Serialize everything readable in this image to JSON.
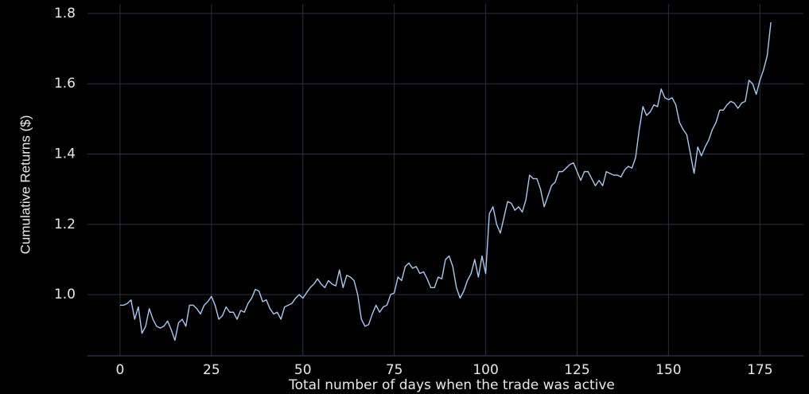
{
  "chart_data": {
    "type": "line",
    "x_label": "Total number of days when the trade was active",
    "y_label": "Cumulative Returns ($)",
    "x": [
      0,
      1,
      2,
      3,
      4,
      5,
      6,
      7,
      8,
      9,
      10,
      11,
      12,
      13,
      14,
      15,
      16,
      17,
      18,
      19,
      20,
      21,
      22,
      23,
      24,
      25,
      26,
      27,
      28,
      29,
      30,
      31,
      32,
      33,
      34,
      35,
      36,
      37,
      38,
      39,
      40,
      41,
      42,
      43,
      44,
      45,
      46,
      47,
      48,
      49,
      50,
      51,
      52,
      53,
      54,
      55,
      56,
      57,
      58,
      59,
      60,
      61,
      62,
      63,
      64,
      65,
      66,
      67,
      68,
      69,
      70,
      71,
      72,
      73,
      74,
      75,
      76,
      77,
      78,
      79,
      80,
      81,
      82,
      83,
      84,
      85,
      86,
      87,
      88,
      89,
      90,
      91,
      92,
      93,
      94,
      95,
      96,
      97,
      98,
      99,
      100,
      101,
      102,
      103,
      104,
      105,
      106,
      107,
      108,
      109,
      110,
      111,
      112,
      113,
      114,
      115,
      116,
      117,
      118,
      119,
      120,
      121,
      122,
      123,
      124,
      125,
      126,
      127,
      128,
      129,
      130,
      131,
      132,
      133,
      134,
      135,
      136,
      137,
      138,
      139,
      140,
      141,
      142,
      143,
      144,
      145,
      146,
      147,
      148,
      149,
      150,
      151,
      152,
      153,
      154,
      155,
      156,
      157,
      158,
      159,
      160,
      161,
      162,
      163,
      164,
      165,
      166,
      167,
      168,
      169,
      170,
      171,
      172,
      173,
      174,
      175,
      176,
      177,
      178
    ],
    "series": [
      {
        "name": "Cumulative Returns",
        "color": "#a9c9f0",
        "values": [
          0.97,
          0.97,
          0.975,
          0.985,
          0.93,
          0.965,
          0.89,
          0.91,
          0.96,
          0.93,
          0.91,
          0.905,
          0.91,
          0.925,
          0.9,
          0.87,
          0.92,
          0.93,
          0.91,
          0.97,
          0.97,
          0.96,
          0.945,
          0.97,
          0.98,
          0.995,
          0.97,
          0.93,
          0.94,
          0.965,
          0.95,
          0.95,
          0.93,
          0.955,
          0.95,
          0.975,
          0.99,
          1.015,
          1.01,
          0.98,
          0.985,
          0.96,
          0.945,
          0.95,
          0.93,
          0.965,
          0.97,
          0.975,
          0.99,
          1.0,
          0.99,
          1.005,
          1.02,
          1.03,
          1.045,
          1.03,
          1.02,
          1.04,
          1.03,
          1.025,
          1.07,
          1.02,
          1.055,
          1.05,
          1.04,
          1.0,
          0.93,
          0.91,
          0.915,
          0.945,
          0.97,
          0.95,
          0.965,
          0.97,
          1.0,
          1.005,
          1.05,
          1.04,
          1.08,
          1.09,
          1.075,
          1.08,
          1.06,
          1.065,
          1.045,
          1.02,
          1.02,
          1.05,
          1.045,
          1.1,
          1.11,
          1.08,
          1.02,
          0.99,
          1.01,
          1.04,
          1.06,
          1.1,
          1.05,
          1.11,
          1.06,
          1.23,
          1.25,
          1.2,
          1.175,
          1.22,
          1.265,
          1.26,
          1.24,
          1.25,
          1.235,
          1.27,
          1.34,
          1.33,
          1.33,
          1.3,
          1.25,
          1.28,
          1.31,
          1.32,
          1.35,
          1.35,
          1.36,
          1.37,
          1.375,
          1.35,
          1.325,
          1.35,
          1.35,
          1.33,
          1.31,
          1.325,
          1.31,
          1.35,
          1.345,
          1.34,
          1.34,
          1.335,
          1.355,
          1.365,
          1.36,
          1.39,
          1.47,
          1.535,
          1.51,
          1.52,
          1.54,
          1.535,
          1.585,
          1.56,
          1.555,
          1.56,
          1.54,
          1.49,
          1.47,
          1.455,
          1.4,
          1.345,
          1.42,
          1.395,
          1.42,
          1.44,
          1.47,
          1.49,
          1.525,
          1.525,
          1.54,
          1.55,
          1.545,
          1.53,
          1.545,
          1.55,
          1.61,
          1.6,
          1.57,
          1.61,
          1.64,
          1.68,
          1.775
        ]
      }
    ],
    "xlim": [
      -8.9,
      186.9
    ],
    "ylim": [
      0.826,
      1.827
    ],
    "xticks": [
      0,
      25,
      50,
      75,
      100,
      125,
      150,
      175
    ],
    "yticks": [
      {
        "value": 1.0,
        "label": "1.0"
      },
      {
        "value": 1.2,
        "label": "1.2"
      },
      {
        "value": 1.4,
        "label": "1.4"
      },
      {
        "value": 1.6,
        "label": "1.6"
      },
      {
        "value": 1.8,
        "label": "1.8"
      }
    ],
    "grid": true
  }
}
